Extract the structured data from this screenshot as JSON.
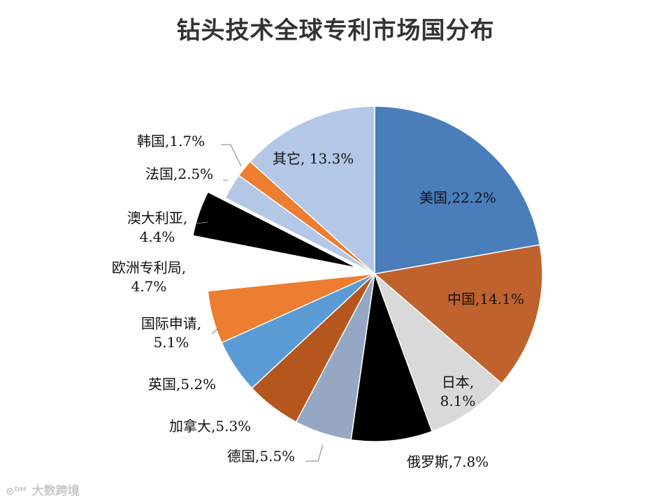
{
  "chart_data": {
    "type": "pie",
    "title": "钻头技术全球专利市场国分布",
    "start_angle_deg": 0,
    "direction": "clockwise",
    "slices": [
      {
        "name": "美国",
        "value": 22.2,
        "label": "美国,22.2%",
        "color": "#4A7EBB",
        "explode": 0
      },
      {
        "name": "中国",
        "value": 14.1,
        "label": "中国,14.1%",
        "color": "#C0622E",
        "explode": 0
      },
      {
        "name": "日本",
        "value": 8.1,
        "label": "日本,\n8.1%",
        "color": "#D9D9D9",
        "explode": 0
      },
      {
        "name": "俄罗斯",
        "value": 7.8,
        "label": "俄罗斯,7.8%",
        "color": "#000000",
        "explode": 0
      },
      {
        "name": "德国",
        "value": 5.5,
        "label": "德国,5.5%",
        "color": "#95A7C2",
        "explode": 0
      },
      {
        "name": "加拿大",
        "value": 5.3,
        "label": "加拿大,5.3%",
        "color": "#B5561F",
        "explode": 0
      },
      {
        "name": "英国",
        "value": 5.2,
        "label": "英国,5.2%",
        "color": "#5B9BD5",
        "explode": 0
      },
      {
        "name": "国际申请",
        "value": 5.1,
        "label": "国际申请,\n5.1%",
        "color": "#ED7D31",
        "explode": 0
      },
      {
        "name": "欧洲专利局",
        "value": 4.7,
        "label": "欧洲专利局,\n4.7%",
        "color": "#FFFFFF",
        "explode": 0
      },
      {
        "name": "澳大利亚",
        "value": 4.4,
        "label": "澳大利亚,\n4.4%",
        "color": "#000000",
        "explode": 1
      },
      {
        "name": "法国",
        "value": 2.5,
        "label": "法国,2.5%",
        "color": "#B4C7E7",
        "explode": 0
      },
      {
        "name": "韩国",
        "value": 1.7,
        "label": "韩国,1.7%",
        "color": "#ED7D31",
        "explode": 0
      },
      {
        "name": "其它",
        "value": 13.3,
        "label": "其它, 13.3%",
        "color": "#B4C7E7",
        "explode": 0
      }
    ]
  },
  "watermark": {
    "logo": "⊙ᴰᴹ",
    "text": "大数跨境"
  }
}
